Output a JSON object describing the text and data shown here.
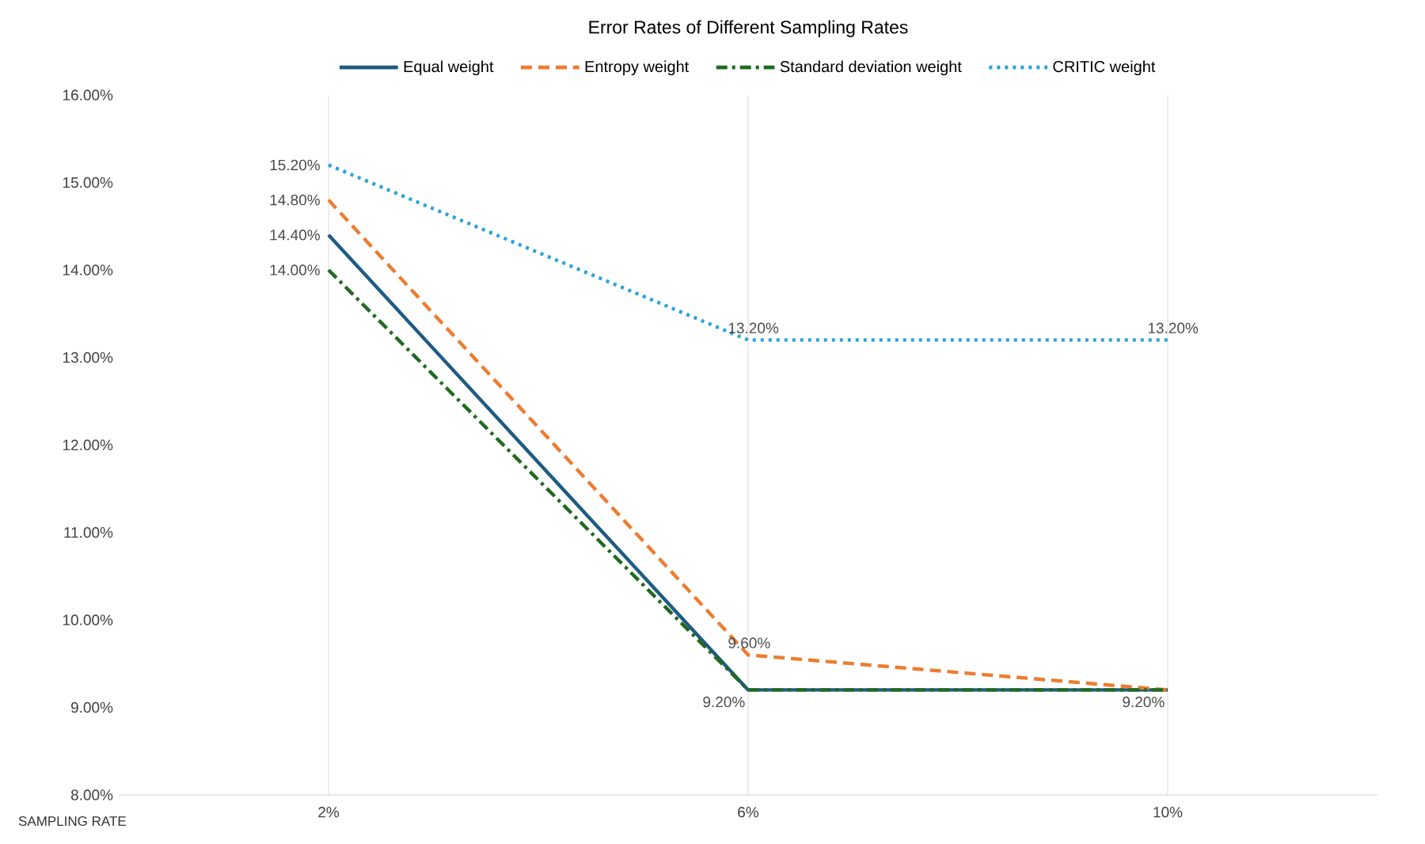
{
  "chart_data": {
    "type": "line",
    "title": "Error Rates of Different Sampling Rates",
    "xlabel": "SAMPLING RATE",
    "categories": [
      "2%",
      "6%",
      "10%"
    ],
    "series": [
      {
        "name": "Equal weight",
        "color": "#1f5b82",
        "line_style": "solid",
        "values": [
          14.4,
          9.2,
          9.2
        ],
        "value_labels": [
          "14.40%",
          "9.20%",
          null
        ]
      },
      {
        "name": "Entropy weight",
        "color": "#ed7d31",
        "line_style": "dashed",
        "values": [
          14.8,
          9.6,
          9.2
        ],
        "value_labels": [
          "14.80%",
          "9.60%",
          "9.20%"
        ]
      },
      {
        "name": "Standard deviation weight",
        "color": "#1e6b1e",
        "line_style": "dashdot",
        "values": [
          14.0,
          9.2,
          9.2
        ],
        "value_labels": [
          "14.00%",
          null,
          null
        ]
      },
      {
        "name": "CRITIC weight",
        "color": "#2aa3d9",
        "line_style": "dotted",
        "values": [
          15.2,
          13.2,
          13.2
        ],
        "value_labels": [
          "15.20%",
          "13.20%",
          "13.20%"
        ]
      }
    ],
    "ylim": [
      8,
      16
    ],
    "yticks": [
      {
        "value": 8,
        "label": "8.00%"
      },
      {
        "value": 9,
        "label": "9.00%"
      },
      {
        "value": 10,
        "label": "10.00%"
      },
      {
        "value": 11,
        "label": "11.00%"
      },
      {
        "value": 12,
        "label": "12.00%"
      },
      {
        "value": 13,
        "label": "13.00%"
      },
      {
        "value": 14,
        "label": "14.00%"
      },
      {
        "value": 15,
        "label": "15.00%"
      },
      {
        "value": 16,
        "label": "16.00%"
      }
    ],
    "grid": "x",
    "legend": "top",
    "marker": "none"
  }
}
